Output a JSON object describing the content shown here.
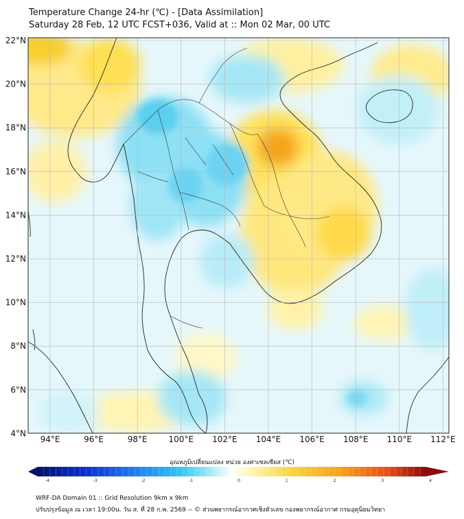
{
  "title_line1": "Temperature Change 24-hr (℃) - [Data Assimilation]",
  "title_line2": "Saturday 28 Feb, 12 UTC FCST+036, Valid at :: Mon 02 Mar, 00 UTC",
  "lat_labels": [
    "22°N",
    "20°N",
    "18°N",
    "16°N",
    "14°N",
    "12°N",
    "10°N",
    "8°N",
    "6°N",
    "4°N"
  ],
  "lon_labels": [
    "94°E",
    "96°E",
    "98°E",
    "100°E",
    "102°E",
    "104°E",
    "106°E",
    "108°E",
    "110°E",
    "112°E"
  ],
  "colorbar": {
    "title": "อุณหภูมิเปลี่ยนแปลง หน่วย องศาเซลเซียส (℃)",
    "ticks": [
      "-4",
      "-3",
      "-2",
      "-1",
      "0",
      "1",
      "2",
      "3",
      "4"
    ],
    "min": -4,
    "max": 4,
    "colors": [
      "#05106b",
      "#0a2fd0",
      "#1f7ef0",
      "#35c6f0",
      "#9ee6f5",
      "#ffffff",
      "#fff4a0",
      "#f7d43a",
      "#f7a21c",
      "#e8501a",
      "#8b0a0a"
    ]
  },
  "footer_line1": "WRF-DA Domain 01 :: Grid Resolution 9km x 9km",
  "footer_line2": "ปรับปรุงข้อมูล ณ เวลา 19:00น. วัน ส. ที่ 28 ก.พ. 2569 -- © ส่วนพยากรณ์อากาศเชิงตัวเลข กองพยากรณ์อากาศ กรมอุตุนิยมวิทยา"
}
